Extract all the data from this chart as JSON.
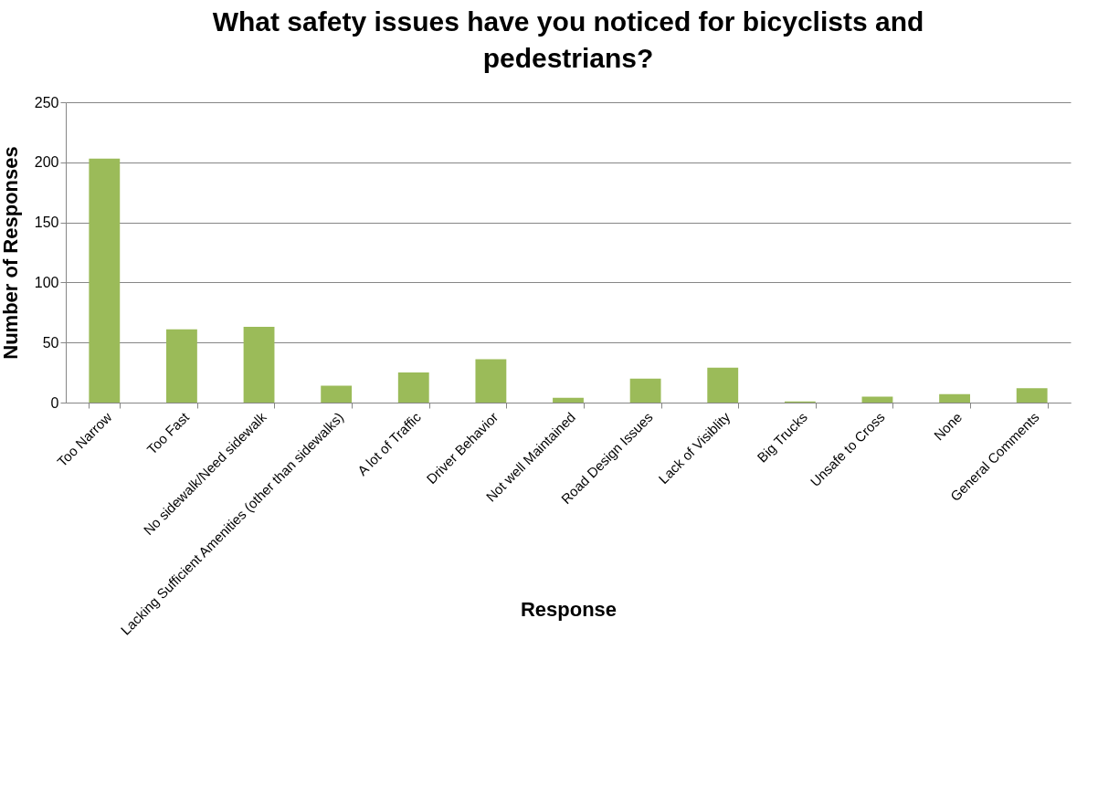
{
  "chart_data": {
    "type": "bar",
    "title": "What safety issues have you noticed for bicyclists and pedestrians?",
    "xlabel": "Response",
    "ylabel": "Number of Responses",
    "categories": [
      "Too Narrow",
      "Too Fast",
      "No sidewalk/Need sidewalk",
      "Lacking Sufficient Amenities (other than sidewalks)",
      "A lot of Traffic",
      "Driver Behavior",
      "Not well Maintained",
      "Road Design Issues",
      "Lack of Visiblity",
      "Big Trucks",
      "Unsafe to Cross",
      "None",
      "General Comments"
    ],
    "values": [
      203,
      61,
      63,
      14,
      25,
      36,
      4,
      20,
      29,
      1,
      5,
      7,
      12
    ],
    "color": "#9bbb59",
    "ylim": [
      0,
      250
    ],
    "yticks": [
      0,
      50,
      100,
      150,
      200,
      250
    ],
    "grid": "y"
  }
}
